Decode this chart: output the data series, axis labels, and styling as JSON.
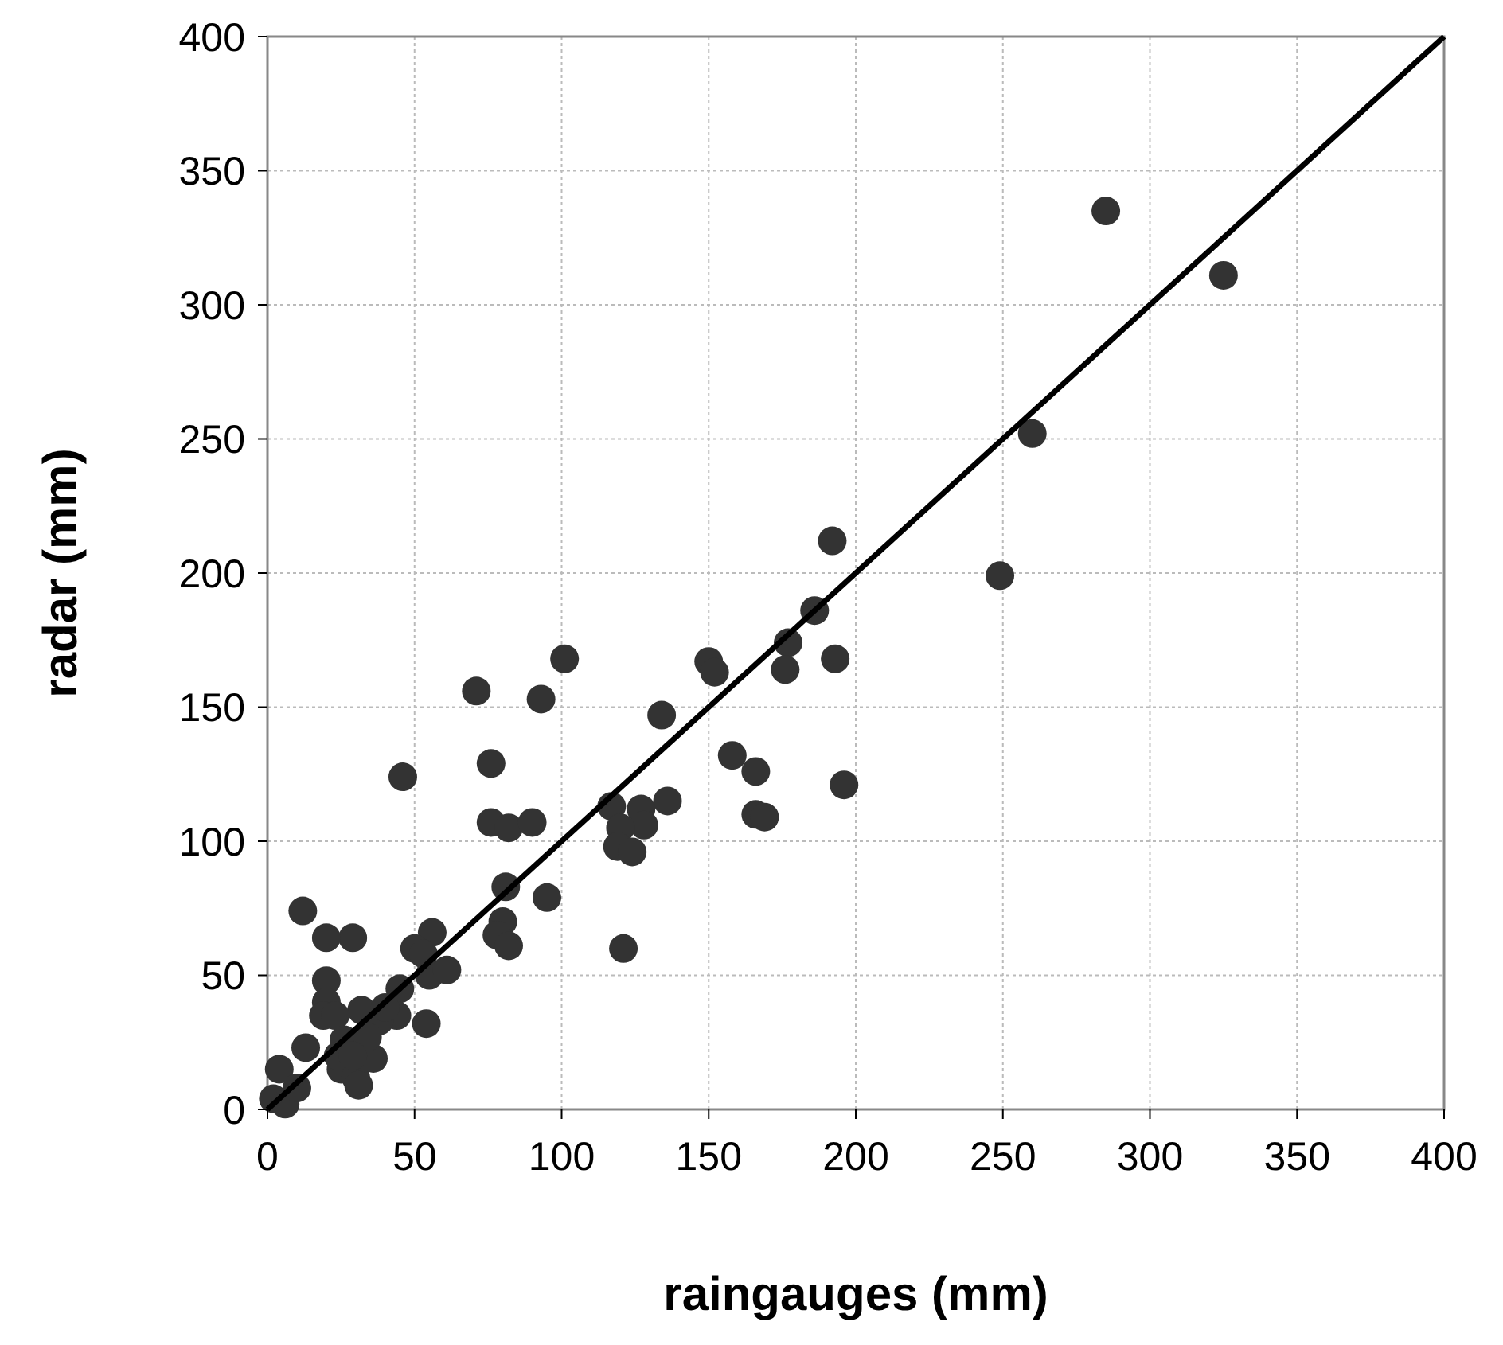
{
  "chart_data": {
    "type": "scatter",
    "xlabel": "raingauges (mm)",
    "ylabel": "radar (mm)",
    "xlim": [
      0,
      400
    ],
    "ylim": [
      0,
      400
    ],
    "xticks": [
      0,
      50,
      100,
      150,
      200,
      250,
      300,
      350,
      400
    ],
    "yticks": [
      0,
      50,
      100,
      150,
      200,
      250,
      300,
      350,
      400
    ],
    "grid": true,
    "marker": "circle",
    "series": [
      {
        "color": "#333333",
        "x": [
          285,
          325,
          260,
          249,
          192,
          186,
          177,
          176,
          193,
          196,
          150,
          152,
          134,
          158,
          166,
          166,
          169,
          136,
          127,
          128,
          117,
          120,
          119,
          124,
          121,
          101,
          93,
          71,
          76,
          46,
          76,
          82,
          90,
          95,
          81,
          80,
          78,
          82,
          56,
          55,
          61,
          50,
          53,
          54,
          45,
          44,
          38,
          32,
          29,
          20,
          12,
          20,
          20,
          19,
          23,
          26,
          25,
          30,
          31,
          36,
          24,
          13,
          4,
          2,
          6,
          10,
          34,
          40,
          29
        ],
        "values": [
          335,
          311,
          252,
          199,
          212,
          186,
          174,
          164,
          168,
          121,
          167,
          163,
          147,
          132,
          126,
          110,
          109,
          115,
          112,
          106,
          113,
          105,
          98,
          96,
          60,
          168,
          153,
          156,
          129,
          124,
          107,
          105,
          107,
          79,
          83,
          70,
          65,
          61,
          66,
          50,
          52,
          60,
          58,
          32,
          45,
          35,
          33,
          37,
          64,
          64,
          74,
          48,
          40,
          35,
          35,
          26,
          15,
          12,
          9,
          19,
          20,
          23,
          15,
          4,
          2,
          8,
          27,
          38,
          20
        ]
      },
      {
        "type": "line",
        "color": "#000000",
        "x": [
          0,
          400
        ],
        "values": [
          0,
          400
        ],
        "line_style": "solid",
        "marker": "none"
      }
    ]
  }
}
